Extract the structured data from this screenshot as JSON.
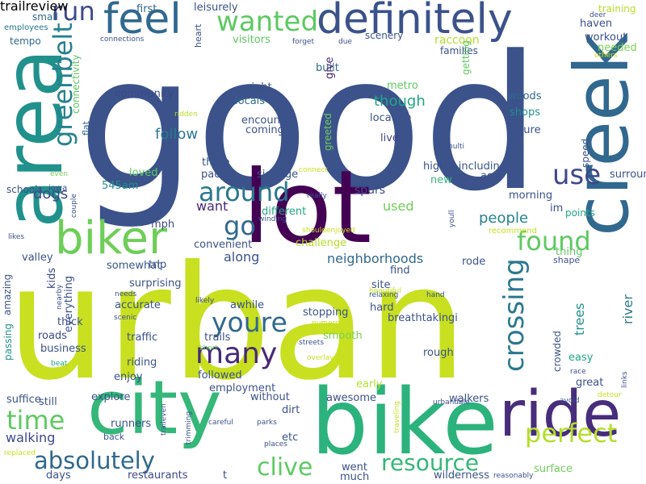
{
  "words": [
    {
      "text": "good",
      "color": "#3b528b"
    },
    {
      "text": "urban",
      "color": "#c8e020"
    },
    {
      "text": "lot",
      "color": "#440154"
    },
    {
      "text": "bike",
      "color": "#2cb27d"
    },
    {
      "text": "city",
      "color": "#35b779"
    },
    {
      "text": "area",
      "color": "#21918c"
    },
    {
      "text": "definitely",
      "color": "#3b528b"
    },
    {
      "text": "creek",
      "color": "#31688e"
    },
    {
      "text": "ride",
      "color": "#472d7b"
    },
    {
      "text": "biker",
      "color": "#6ece58"
    },
    {
      "text": "feel",
      "color": "#31688e"
    },
    {
      "text": "greenbelt",
      "color": "#26828e"
    },
    {
      "text": "run",
      "color": "#3e4989"
    },
    {
      "text": "wanted",
      "color": "#5ec962"
    },
    {
      "text": "around",
      "color": "#2a788e"
    },
    {
      "text": "use",
      "color": "#3e4989"
    },
    {
      "text": "go",
      "color": "#31688e"
    },
    {
      "text": "youre",
      "color": "#31688e"
    },
    {
      "text": "many",
      "color": "#482878"
    },
    {
      "text": "found",
      "color": "#5ec962"
    },
    {
      "text": "crossing",
      "color": "#2a788e"
    },
    {
      "text": "perfect",
      "color": "#b5de2b"
    },
    {
      "text": "time",
      "color": "#5ec962"
    },
    {
      "text": "absolutely",
      "color": "#31688e"
    },
    {
      "text": "clive",
      "color": "#5ec962"
    },
    {
      "text": "resource",
      "color": "#35b779"
    },
    {
      "text": "people",
      "color": "#26828e"
    },
    {
      "text": "follow",
      "color": "#2a788e"
    },
    {
      "text": "neighborhoods",
      "color": "#31688e"
    },
    {
      "text": "though",
      "color": "#21a685"
    },
    {
      "text": "raccoon",
      "color": "#b5de2b"
    },
    {
      "text": "dogs",
      "color": "#3e4989"
    },
    {
      "text": "walking",
      "color": "#3e4989"
    },
    {
      "text": "along",
      "color": "#3b528b"
    },
    {
      "text": "want",
      "color": "#482878"
    },
    {
      "text": "used",
      "color": "#6ece58"
    },
    {
      "text": "spurs",
      "color": "#3e4989"
    },
    {
      "text": "crowded",
      "color": "#3b528b"
    },
    {
      "text": "trees",
      "color": "#21918c"
    },
    {
      "text": "river",
      "color": "#2a788e"
    },
    {
      "text": "location",
      "color": "#3b528b"
    },
    {
      "text": "live",
      "color": "#414487"
    },
    {
      "text": "woods",
      "color": "#31688e"
    },
    {
      "text": "shops",
      "color": "#21918c"
    },
    {
      "text": "nature",
      "color": "#3b528b"
    },
    {
      "text": "workout",
      "color": "#3b528b"
    },
    {
      "text": "haven",
      "color": "#3b528b"
    },
    {
      "text": "needed",
      "color": "#7ad151"
    },
    {
      "text": "training",
      "color": "#b5de2b"
    },
    {
      "text": "leisurely",
      "color": "#3b528b"
    },
    {
      "text": "first",
      "color": "#31688e"
    },
    {
      "text": "small",
      "color": "#31688e"
    },
    {
      "text": "employees",
      "color": "#2a788e"
    },
    {
      "text": "tempo",
      "color": "#31688e"
    },
    {
      "text": "connections",
      "color": "#3b528b"
    },
    {
      "text": "visitors",
      "color": "#5ec962"
    },
    {
      "text": "forget",
      "color": "#3b528b"
    },
    {
      "text": "due",
      "color": "#3b528b"
    },
    {
      "text": "scenery",
      "color": "#3b528b"
    },
    {
      "text": "families",
      "color": "#3b528b"
    },
    {
      "text": "built",
      "color": "#31688e"
    },
    {
      "text": "give",
      "color": "#482878"
    },
    {
      "text": "heart",
      "color": "#3b528b"
    },
    {
      "text": "connectivity",
      "color": "#5ec962"
    },
    {
      "text": "community",
      "color": "#3e4989"
    },
    {
      "text": "right",
      "color": "#3b528b"
    },
    {
      "text": "locals",
      "color": "#31688e"
    },
    {
      "text": "encounter",
      "color": "#3b528b"
    },
    {
      "text": "coming",
      "color": "#3b528b"
    },
    {
      "text": "metro",
      "color": "#5ec962"
    },
    {
      "text": "flat",
      "color": "#31688e"
    },
    {
      "text": "ridden",
      "color": "#b5de2b"
    },
    {
      "text": "greeted",
      "color": "#6ece58"
    },
    {
      "text": "getting",
      "color": "#5ec962"
    },
    {
      "text": "highly including",
      "color": "#3b528b"
    },
    {
      "text": "new",
      "color": "#35b779"
    },
    {
      "text": "multi",
      "color": "#3b528b"
    },
    {
      "text": "ago",
      "color": "#3b528b"
    },
    {
      "text": "morning",
      "color": "#3b528b"
    },
    {
      "text": "points",
      "color": "#21a685"
    },
    {
      "text": "im",
      "color": "#3b528b"
    },
    {
      "text": "speed",
      "color": "#3b528b"
    },
    {
      "text": "surrounding",
      "color": "#3b528b"
    },
    {
      "text": "thing",
      "color": "#5ec962"
    },
    {
      "text": "shape",
      "color": "#3b528b"
    },
    {
      "text": "recommend",
      "color": "#c8e020"
    },
    {
      "text": "deer",
      "color": "#3b528b"
    },
    {
      "text": "others",
      "color": "#c8e020"
    },
    {
      "text": "three",
      "color": "#3b528b"
    },
    {
      "text": "pace",
      "color": "#3b528b"
    },
    {
      "text": "signage",
      "color": "#3b528b"
    },
    {
      "text": "loved",
      "color": "#5ec962"
    },
    {
      "text": "545am",
      "color": "#21918c"
    },
    {
      "text": "schools",
      "color": "#3b528b"
    },
    {
      "text": "iowa",
      "color": "#3e4989"
    },
    {
      "text": "even",
      "color": "#7ad151"
    },
    {
      "text": "couple",
      "color": "#3b528b"
    },
    {
      "text": "likes",
      "color": "#3b528b"
    },
    {
      "text": "valley",
      "color": "#3b528b"
    },
    {
      "text": "mph",
      "color": "#3e4989"
    },
    {
      "text": "convenient",
      "color": "#3b528b"
    },
    {
      "text": "trip",
      "color": "#3b528b"
    },
    {
      "text": "somewhat",
      "color": "#3b528b"
    },
    {
      "text": "different",
      "color": "#21a685"
    },
    {
      "text": "challenge",
      "color": "#b5de2b"
    },
    {
      "text": "find",
      "color": "#3b528b"
    },
    {
      "text": "rode",
      "color": "#3b528b"
    },
    {
      "text": "youll",
      "color": "#3b528b"
    },
    {
      "text": "connect",
      "color": "#c8e020"
    },
    {
      "text": "really",
      "color": "#3b528b"
    },
    {
      "text": "winding",
      "color": "#3b528b"
    },
    {
      "text": "shouldenjoyed",
      "color": "#c8e020"
    },
    {
      "text": "surprising",
      "color": "#3b528b"
    },
    {
      "text": "kids",
      "color": "#3e4989"
    },
    {
      "text": "amazing",
      "color": "#3b528b"
    },
    {
      "text": "passing",
      "color": "#21918c"
    },
    {
      "text": "everything",
      "color": "#3b528b"
    },
    {
      "text": "nearby",
      "color": "#3b528b"
    },
    {
      "text": "needs",
      "color": "#3b528b"
    },
    {
      "text": "scenic",
      "color": "#3b528b"
    },
    {
      "text": "accurate",
      "color": "#3b528b"
    },
    {
      "text": "thick",
      "color": "#3b528b"
    },
    {
      "text": "roads",
      "color": "#3e4989"
    },
    {
      "text": "business",
      "color": "#3b528b"
    },
    {
      "text": "traffic",
      "color": "#3b528b"
    },
    {
      "text": "beat",
      "color": "#21a685"
    },
    {
      "text": "riding",
      "color": "#3b528b"
    },
    {
      "text": "enjoy",
      "color": "#3b528b"
    },
    {
      "text": "likely",
      "color": "#3e4989"
    },
    {
      "text": "short",
      "color": "#6ece58"
    },
    {
      "text": "followed",
      "color": "#3b528b"
    },
    {
      "text": "employment",
      "color": "#3b528b"
    },
    {
      "text": "awhile",
      "color": "#3b528b"
    },
    {
      "text": "trails",
      "color": "#3b528b"
    },
    {
      "text": "stopping",
      "color": "#3b528b"
    },
    {
      "text": "smooth",
      "color": "#7ad151"
    },
    {
      "text": "site",
      "color": "#3b528b"
    },
    {
      "text": "hard",
      "color": "#3b528b"
    },
    {
      "text": "breathtakingi",
      "color": "#3b528b"
    },
    {
      "text": "hand",
      "color": "#3b528b"
    },
    {
      "text": "relaxing",
      "color": "#3b528b"
    },
    {
      "text": "beautiful",
      "color": "#c8e020"
    },
    {
      "text": "numerous",
      "color": "#c8e020"
    },
    {
      "text": "streets",
      "color": "#3b528b"
    },
    {
      "text": "overlay",
      "color": "#c8e020"
    },
    {
      "text": "rough",
      "color": "#3b528b"
    },
    {
      "text": "easy",
      "color": "#21a685"
    },
    {
      "text": "great",
      "color": "#3b528b"
    },
    {
      "text": "race",
      "color": "#3b528b"
    },
    {
      "text": "links",
      "color": "#3b528b"
    },
    {
      "text": "suffice",
      "color": "#3b528b"
    },
    {
      "text": "still",
      "color": "#3b528b"
    },
    {
      "text": "explore",
      "color": "#3b528b"
    },
    {
      "text": "without",
      "color": "#3b528b"
    },
    {
      "text": "early",
      "color": "#b5de2b"
    },
    {
      "text": "awesome",
      "color": "#3b528b"
    },
    {
      "text": "walkers",
      "color": "#3b528b"
    },
    {
      "text": "urbandale",
      "color": "#3b528b"
    },
    {
      "text": "avoid",
      "color": "#3b528b"
    },
    {
      "text": "detour",
      "color": "#c8e020"
    },
    {
      "text": "runners",
      "color": "#3b528b"
    },
    {
      "text": "back",
      "color": "#3b528b"
    },
    {
      "text": "traileven",
      "color": "#3b528b"
    },
    {
      "text": "trimming",
      "color": "#3b528b"
    },
    {
      "text": "careful",
      "color": "#3b528b"
    },
    {
      "text": "parks",
      "color": "#3b528b"
    },
    {
      "text": "dirt",
      "color": "#3b528b"
    },
    {
      "text": "etc",
      "color": "#3b528b"
    },
    {
      "text": "places",
      "color": "#3b528b"
    },
    {
      "text": "traveling",
      "color": "#c8e020"
    },
    {
      "text": "replaced",
      "color": "#c8e020"
    },
    {
      "text": "days",
      "color": "#3b528b"
    },
    {
      "text": "restaurants",
      "color": "#3e4989"
    },
    {
      "text": "t",
      "color": "#3b528b"
    },
    {
      "text": "went",
      "color": "#3b528b"
    },
    {
      "text": "much",
      "color": "#3b528b"
    },
    {
      "text": "wilderness",
      "color": "#3b528b"
    },
    {
      "text": "surface",
      "color": "#6ece58"
    },
    {
      "text": "reasonably",
      "color": "#3b528b"
    },
    {
      "text": "trailreview",
      "color": "#3b528b"
    }
  ]
}
